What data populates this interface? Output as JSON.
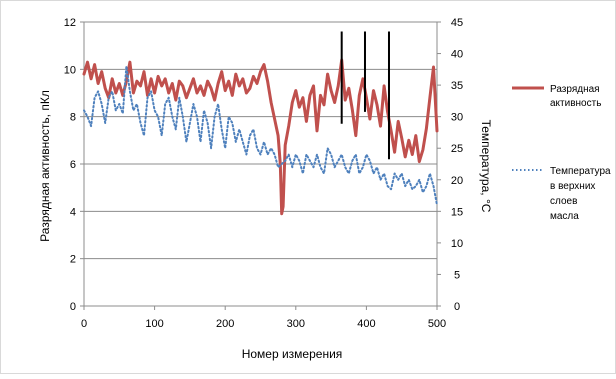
{
  "chart_data": {
    "type": "line",
    "xlabel": "Номер измерения",
    "ylabel_left": "Разрядная активность, пКл",
    "ylabel_right": "Температура, °С",
    "x_range": [
      0,
      500
    ],
    "y_left_range": [
      0,
      12
    ],
    "y_right_range": [
      0,
      45
    ],
    "x_ticks": [
      "0",
      "100",
      "200",
      "300",
      "400",
      "500"
    ],
    "y_left_ticks": [
      "0",
      "2",
      "4",
      "6",
      "8",
      "10",
      "12"
    ],
    "y_right_ticks": [
      "0",
      "5",
      "10",
      "15",
      "20",
      "25",
      "30",
      "35",
      "40",
      "45"
    ],
    "grid": "horizontal",
    "legend_position": "right",
    "colors": {
      "discharge": "#c0504d",
      "temperature": "#4f81bd",
      "spikes": "#000000"
    },
    "legend": [
      {
        "lines": [
          "Разрядная",
          "активность"
        ],
        "style": "solid",
        "color": "#c0504d"
      },
      {
        "lines": [
          "Температура",
          "в верхних",
          "слоев",
          "масла"
        ],
        "style": "dotted",
        "color": "#4f81bd"
      }
    ],
    "series": [
      {
        "axis": "left",
        "style": "solid",
        "x": [
          0,
          5,
          10,
          15,
          20,
          25,
          30,
          35,
          40,
          45,
          50,
          55,
          60,
          65,
          70,
          75,
          80,
          85,
          90,
          95,
          100,
          105,
          110,
          115,
          120,
          125,
          130,
          135,
          140,
          145,
          150,
          155,
          160,
          165,
          170,
          175,
          180,
          185,
          190,
          195,
          200,
          205,
          210,
          215,
          220,
          225,
          230,
          235,
          240,
          245,
          250,
          255,
          260,
          265,
          270,
          275,
          278,
          280,
          282,
          285,
          290,
          295,
          300,
          305,
          310,
          315,
          320,
          325,
          330,
          335,
          340,
          345,
          350,
          355,
          360,
          365,
          370,
          375,
          380,
          385,
          390,
          395,
          400,
          405,
          410,
          415,
          420,
          425,
          430,
          435,
          440,
          445,
          450,
          455,
          460,
          465,
          470,
          475,
          480,
          485,
          490,
          495,
          500
        ],
        "values": [
          9.8,
          10.3,
          9.6,
          10.2,
          9.4,
          9.9,
          9.2,
          8.8,
          9.6,
          9.0,
          9.4,
          8.9,
          9.5,
          10.3,
          9.0,
          9.5,
          9.3,
          9.9,
          8.9,
          9.6,
          9.0,
          9.7,
          9.3,
          9.6,
          9.0,
          9.4,
          8.7,
          9.5,
          9.3,
          8.8,
          9.2,
          9.6,
          9.0,
          9.3,
          8.9,
          9.5,
          9.2,
          8.7,
          9.4,
          9.9,
          9.1,
          9.5,
          8.9,
          9.8,
          9.3,
          9.6,
          9.0,
          9.2,
          9.7,
          9.4,
          9.9,
          10.2,
          9.5,
          8.6,
          7.9,
          7.2,
          6.0,
          3.9,
          4.2,
          6.8,
          7.6,
          8.6,
          9.1,
          8.4,
          8.8,
          7.8,
          8.9,
          9.3,
          7.4,
          8.9,
          8.5,
          9.8,
          9.1,
          8.6,
          9.3,
          10.4,
          8.7,
          9.2,
          8.3,
          7.2,
          8.9,
          9.6,
          8.8,
          7.9,
          9.1,
          8.5,
          7.6,
          9.3,
          8.2,
          7.4,
          6.5,
          7.8,
          7.1,
          6.3,
          7.0,
          6.4,
          7.2,
          6.1,
          6.6,
          7.5,
          8.8,
          10.1,
          7.4
        ]
      },
      {
        "axis": "right",
        "style": "dotted",
        "x": [
          0,
          5,
          10,
          15,
          20,
          25,
          30,
          35,
          40,
          45,
          50,
          55,
          60,
          65,
          70,
          75,
          80,
          85,
          90,
          95,
          100,
          105,
          110,
          115,
          120,
          125,
          130,
          135,
          140,
          145,
          150,
          155,
          160,
          165,
          170,
          175,
          180,
          185,
          190,
          195,
          200,
          205,
          210,
          215,
          220,
          225,
          230,
          235,
          240,
          245,
          250,
          255,
          260,
          265,
          270,
          275,
          280,
          285,
          290,
          295,
          300,
          305,
          310,
          315,
          320,
          325,
          330,
          335,
          340,
          345,
          350,
          355,
          360,
          365,
          370,
          375,
          380,
          385,
          390,
          395,
          400,
          405,
          410,
          415,
          420,
          425,
          430,
          435,
          440,
          445,
          450,
          455,
          460,
          465,
          470,
          475,
          480,
          485,
          490,
          495,
          500
        ],
        "values": [
          31,
          30,
          28.5,
          33,
          34,
          32,
          29,
          33,
          34,
          31,
          32,
          30.5,
          38,
          34,
          31,
          32,
          29,
          27,
          33,
          34,
          31,
          30,
          27,
          32,
          33,
          30,
          28,
          33,
          30,
          26,
          29,
          32,
          30,
          26,
          31,
          29,
          25,
          30,
          32,
          28,
          25,
          30,
          29,
          26,
          28,
          26,
          24,
          27,
          28,
          25,
          24,
          26,
          24,
          25,
          24,
          22,
          22.5,
          23,
          24,
          22,
          24,
          23,
          21,
          24,
          23,
          22,
          24,
          22,
          21,
          25,
          24,
          22,
          23,
          24,
          22,
          21,
          23,
          24,
          21,
          22,
          24,
          23,
          21,
          22,
          20,
          21,
          19,
          18.5,
          21,
          20,
          21,
          19,
          20,
          18.5,
          19,
          20,
          18,
          19,
          21,
          19,
          16
        ]
      }
    ],
    "spikes": [
      {
        "x": 365,
        "from": 7.7,
        "to": 11.6
      },
      {
        "x": 398,
        "from": 8.2,
        "to": 11.6
      },
      {
        "x": 432,
        "from": 6.2,
        "to": 11.6
      }
    ]
  }
}
